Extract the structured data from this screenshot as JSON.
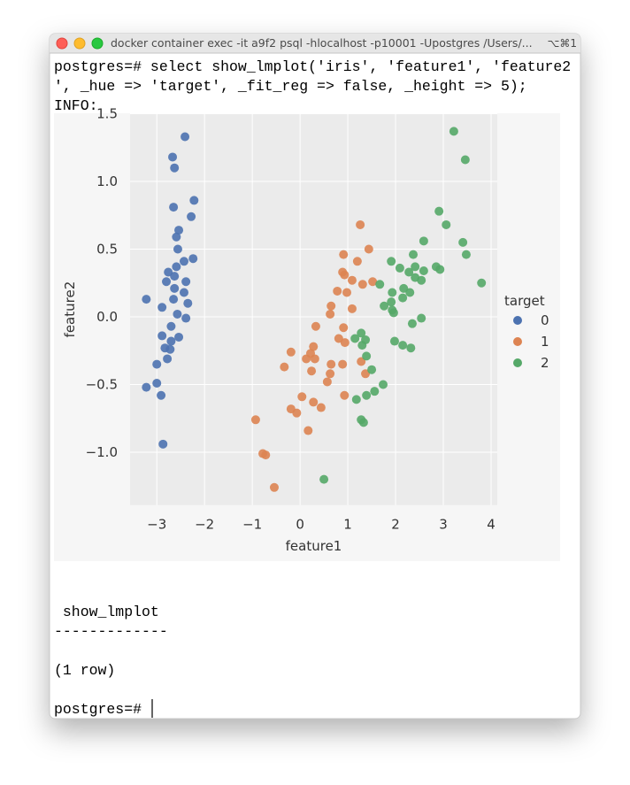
{
  "window": {
    "title": "docker container exec -it a9f2 psql -hlocalhost -p10001 -Upostgres /Users/...",
    "shortcut": "⌥⌘1"
  },
  "terminal": {
    "command_line_1": "postgres=# select show_lmplot('iris', 'feature1', 'feature2",
    "command_line_2": "', _hue => 'target', _fit_reg => false, _height => 5);",
    "info": "INFO:",
    "result_header": " show_lmplot",
    "separator": "-------------",
    "row_count": "(1 row)",
    "prompt": "postgres=# "
  },
  "chart_data": {
    "type": "scatter",
    "x_label": "feature1",
    "y_label": "feature2",
    "legend_title": "target",
    "xlim": [
      -3.56,
      4.13
    ],
    "ylim": [
      -1.39,
      1.5
    ],
    "xticks": [
      {
        "value": -3,
        "label": "−3"
      },
      {
        "value": -2,
        "label": "−2"
      },
      {
        "value": -1,
        "label": "−1"
      },
      0,
      1,
      2,
      3,
      4
    ],
    "yticks": [
      {
        "value": -1,
        "label": "−1.0"
      },
      {
        "value": -0.5,
        "label": "−0.5"
      },
      {
        "value": 0,
        "label": "0.0"
      },
      0.5,
      {
        "value": 1,
        "label": "1.0"
      },
      1.5
    ],
    "grid": true,
    "series": [
      {
        "name": "0",
        "color": "#4c72b0",
        "x": [
          -2.41,
          -2.67,
          -2.63,
          -2.22,
          -2.65,
          -2.28,
          -2.54,
          -2.59,
          -2.56,
          -2.24,
          -2.43,
          -2.59,
          -2.76,
          -2.8,
          -2.63,
          -2.39,
          -2.63,
          -2.43,
          -3.22,
          -2.65,
          -2.35,
          -2.89,
          -2.57,
          -2.39,
          -2.7,
          -2.89,
          -2.54,
          -2.7,
          -2.83,
          -2.72,
          -2.78,
          -3.0,
          -3.0,
          -3.22,
          -2.91,
          -2.87
        ],
        "values": [
          1.33,
          1.18,
          1.1,
          0.86,
          0.81,
          0.74,
          0.64,
          0.59,
          0.5,
          0.43,
          0.41,
          0.37,
          0.33,
          0.26,
          0.3,
          0.26,
          0.21,
          0.18,
          0.13,
          0.13,
          0.1,
          0.07,
          0.02,
          -0.01,
          -0.07,
          -0.14,
          -0.15,
          -0.18,
          -0.23,
          -0.24,
          -0.31,
          -0.35,
          -0.49,
          -0.52,
          -0.58,
          -0.94
        ]
      },
      {
        "name": "1",
        "color": "#dd8452",
        "x": [
          1.26,
          0.91,
          1.44,
          1.2,
          0.89,
          0.93,
          1.09,
          1.31,
          1.52,
          0.78,
          0.98,
          0.65,
          1.09,
          0.63,
          0.33,
          0.91,
          0.81,
          0.94,
          0.28,
          1.28,
          -0.19,
          0.22,
          0.13,
          0.31,
          -0.33,
          0.65,
          0.89,
          1.37,
          0.24,
          0.63,
          0.57,
          0.04,
          0.93,
          0.28,
          0.44,
          -0.19,
          -0.07,
          0.17,
          -0.93,
          -0.78,
          -0.72,
          -0.54
        ],
        "values": [
          0.68,
          0.46,
          0.5,
          0.41,
          0.33,
          0.31,
          0.27,
          0.24,
          0.26,
          0.19,
          0.18,
          0.08,
          0.06,
          0.02,
          -0.07,
          -0.08,
          -0.16,
          -0.19,
          -0.22,
          -0.33,
          -0.26,
          -0.27,
          -0.31,
          -0.31,
          -0.37,
          -0.35,
          -0.35,
          -0.42,
          -0.4,
          -0.42,
          -0.48,
          -0.59,
          -0.58,
          -0.63,
          -0.67,
          -0.68,
          -0.71,
          -0.84,
          -0.76,
          -1.01,
          -1.02,
          -1.26
        ]
      },
      {
        "name": "2",
        "color": "#55a868",
        "x": [
          3.22,
          3.46,
          2.91,
          3.06,
          2.59,
          3.41,
          3.48,
          2.37,
          1.91,
          2.09,
          2.41,
          2.85,
          2.93,
          2.28,
          2.59,
          2.41,
          2.54,
          3.8,
          1.67,
          2.17,
          1.93,
          2.3,
          2.15,
          1.91,
          1.93,
          1.96,
          1.76,
          2.54,
          2.35,
          1.28,
          1.15,
          1.37,
          1.98,
          2.15,
          2.32,
          1.3,
          1.39,
          1.5,
          1.74,
          1.56,
          1.39,
          1.18,
          1.28,
          1.33,
          0.5
        ],
        "values": [
          1.37,
          1.16,
          0.78,
          0.68,
          0.56,
          0.55,
          0.46,
          0.46,
          0.41,
          0.36,
          0.37,
          0.37,
          0.35,
          0.33,
          0.34,
          0.29,
          0.27,
          0.25,
          0.24,
          0.21,
          0.18,
          0.18,
          0.14,
          0.11,
          0.05,
          0.03,
          0.08,
          -0.01,
          -0.05,
          -0.12,
          -0.16,
          -0.17,
          -0.18,
          -0.21,
          -0.23,
          -0.21,
          -0.29,
          -0.39,
          -0.5,
          -0.55,
          -0.58,
          -0.61,
          -0.76,
          -0.78,
          -1.2
        ]
      }
    ]
  }
}
